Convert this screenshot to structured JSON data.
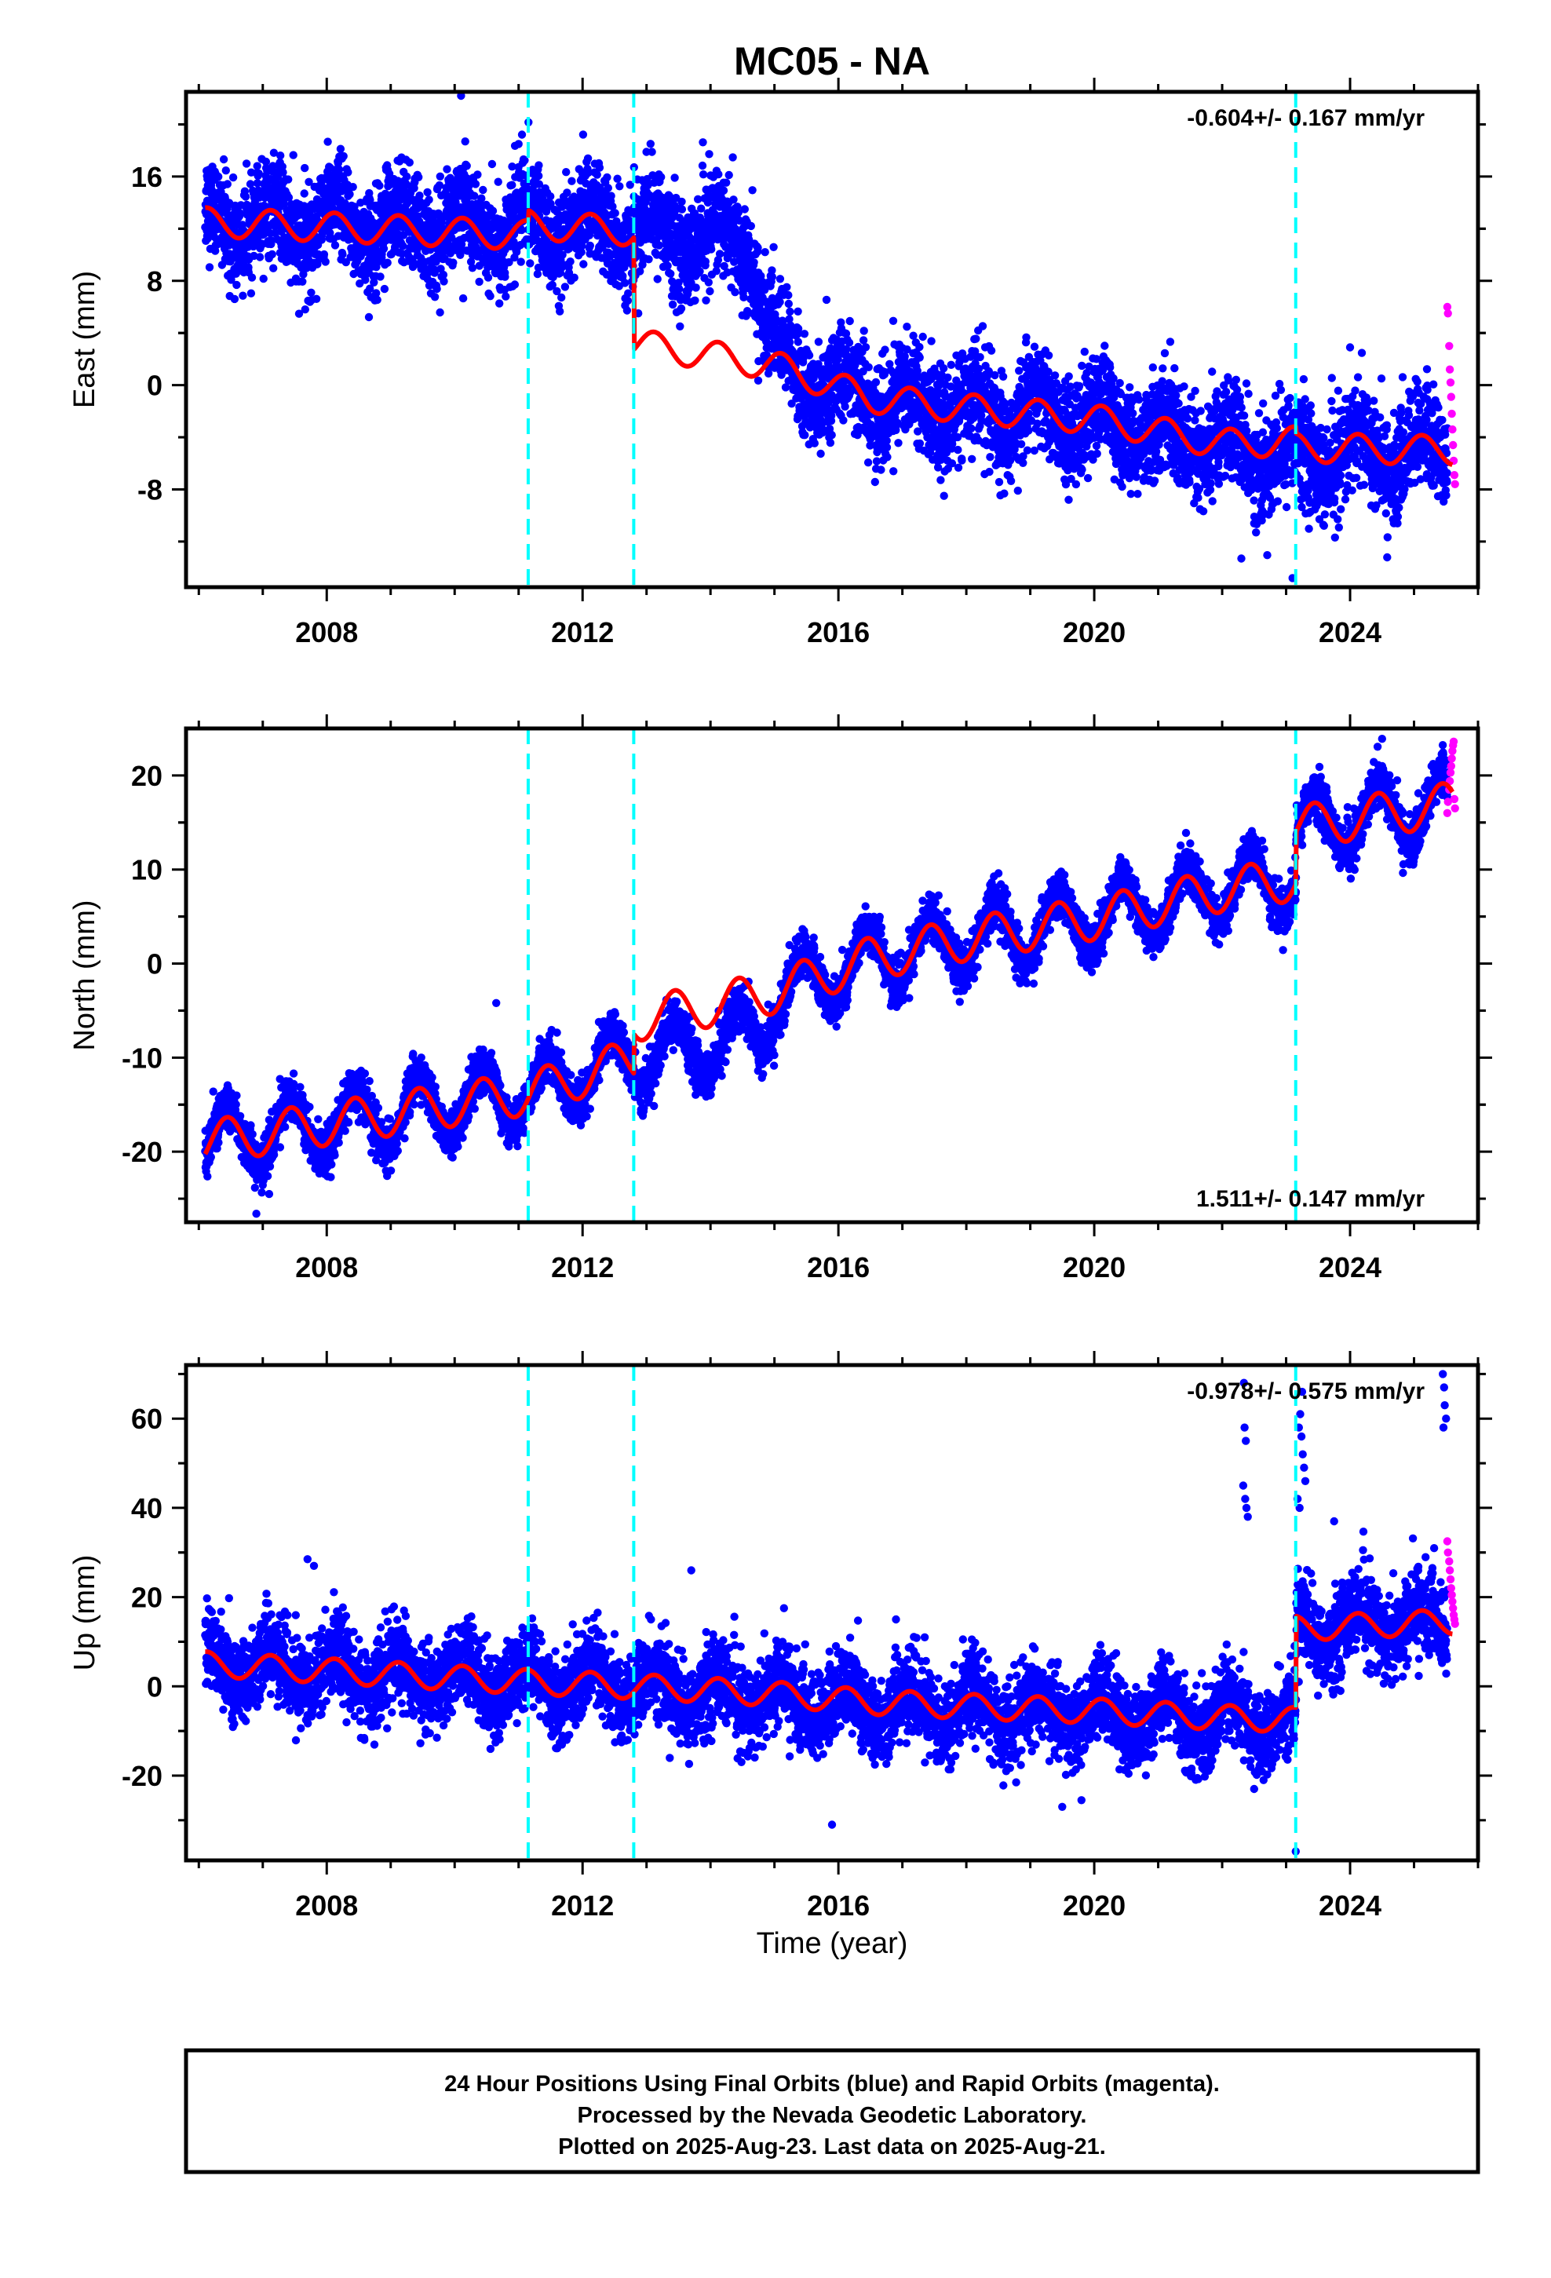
{
  "chart_data": {
    "type": "scatter",
    "title": "MC05 - NA",
    "xlabel": "Time (year)",
    "xlim": [
      2005.8,
      2026.0
    ],
    "x_ticks": [
      2008,
      2012,
      2016,
      2020,
      2024
    ],
    "x_tick_labels": [
      "2008",
      "2012",
      "2016",
      "2020",
      "2024"
    ],
    "offset_lines": [
      2011.15,
      2012.8,
      2023.15
    ],
    "colors": {
      "final": "#0000ff",
      "rapid": "#ff00ff",
      "model": "#ff0000",
      "offsets": "#00ffff"
    },
    "panels": [
      {
        "name": "east",
        "ylabel": "East (mm)",
        "ylim": [
          -15.5,
          22.5
        ],
        "y_ticks": [
          -8,
          0,
          8,
          16
        ],
        "y_tick_labels": [
          "-8",
          "0",
          "8",
          "16"
        ],
        "rate": "-0.604+/- 0.167 mm/yr",
        "rate_pos": "top-right",
        "noise": 1.9,
        "amp": 1.6,
        "spread_factor": 1.0,
        "trend": [
          [
            2006.1,
            12.5
          ],
          [
            2011.15,
            11.5
          ],
          [
            2011.16,
            12.3
          ],
          [
            2012.8,
            11.8
          ],
          [
            2012.81,
            3.2
          ],
          [
            2015.0,
            1.5
          ],
          [
            2016.5,
            -1.0
          ],
          [
            2018.0,
            -1.8
          ],
          [
            2020.0,
            -2.6
          ],
          [
            2022.0,
            -4.5
          ],
          [
            2023.15,
            -4.3
          ],
          [
            2023.16,
            -4.8
          ],
          [
            2025.6,
            -5.0
          ]
        ],
        "data_trend": [
          [
            2006.1,
            12.5
          ],
          [
            2012.8,
            12.0
          ],
          [
            2014.6,
            10.8
          ],
          [
            2015.0,
            3.0
          ],
          [
            2015.4,
            0.5
          ],
          [
            2016.5,
            -1.0
          ],
          [
            2018.0,
            -1.8
          ],
          [
            2020.0,
            -2.6
          ],
          [
            2022.0,
            -4.8
          ],
          [
            2023.15,
            -5.5
          ],
          [
            2025.6,
            -5.0
          ]
        ],
        "outliers": [
          [
            2010.1,
            22.2
          ],
          [
            2011.0,
            18.5
          ],
          [
            2022.3,
            -13.3
          ],
          [
            2023.1,
            -14.8
          ],
          [
            2024.0,
            2.9
          ],
          [
            2019.6,
            -8.8
          ]
        ],
        "rapid": [
          [
            2025.52,
            6.0
          ],
          [
            2025.53,
            5.5
          ],
          [
            2025.55,
            3.0
          ],
          [
            2025.56,
            1.2
          ],
          [
            2025.57,
            0.2
          ],
          [
            2025.58,
            -0.9
          ],
          [
            2025.59,
            -2.2
          ],
          [
            2025.6,
            -3.4
          ],
          [
            2025.61,
            -4.6
          ],
          [
            2025.62,
            -5.8
          ],
          [
            2025.63,
            -6.9
          ],
          [
            2025.64,
            -7.6
          ]
        ]
      },
      {
        "name": "north",
        "ylabel": "North (mm)",
        "ylim": [
          -27.5,
          25.0
        ],
        "y_ticks": [
          -20,
          -10,
          0,
          10,
          20
        ],
        "y_tick_labels": [
          "-20",
          "-10",
          "0",
          "10",
          "20"
        ],
        "rate": "1.511+/- 0.147 mm/yr",
        "rate_pos": "bottom-right",
        "noise": 1.2,
        "amp": 3.3,
        "spread_factor": 1.0,
        "trend": [
          [
            2006.1,
            -19.0
          ],
          [
            2011.15,
            -13.8
          ],
          [
            2012.8,
            -10.2
          ],
          [
            2012.81,
            -6.0
          ],
          [
            2014.7,
            -3.5
          ],
          [
            2015.0,
            -3.0
          ],
          [
            2016.5,
            0.5
          ],
          [
            2018.0,
            2.6
          ],
          [
            2020.0,
            4.8
          ],
          [
            2022.0,
            7.8
          ],
          [
            2023.15,
            9.0
          ],
          [
            2023.16,
            14.5
          ],
          [
            2025.6,
            17.0
          ]
        ],
        "data_trend": [
          [
            2006.1,
            -19.0
          ],
          [
            2011.15,
            -13.8
          ],
          [
            2012.8,
            -10.0
          ],
          [
            2014.8,
            -7.5
          ],
          [
            2015.0,
            -3.5
          ],
          [
            2016.5,
            0.5
          ],
          [
            2018.0,
            2.6
          ],
          [
            2020.0,
            4.8
          ],
          [
            2022.0,
            7.8
          ],
          [
            2023.15,
            9.0
          ],
          [
            2023.16,
            14.5
          ],
          [
            2025.6,
            17.0
          ]
        ],
        "outliers": [
          [
            2006.9,
            -26.6
          ],
          [
            2010.65,
            -4.2
          ],
          [
            2024.5,
            23.9
          ],
          [
            2007.1,
            -24.5
          ]
        ],
        "rapid": [
          [
            2025.52,
            16.0
          ],
          [
            2025.53,
            17.2
          ],
          [
            2025.55,
            18.5
          ],
          [
            2025.56,
            19.4
          ],
          [
            2025.57,
            20.3
          ],
          [
            2025.58,
            21.0
          ],
          [
            2025.59,
            21.8
          ],
          [
            2025.6,
            22.6
          ],
          [
            2025.61,
            23.2
          ],
          [
            2025.62,
            23.6
          ],
          [
            2025.63,
            17.5
          ],
          [
            2025.64,
            16.5
          ]
        ]
      },
      {
        "name": "up",
        "ylabel": "Up (mm)",
        "ylim": [
          -39.0,
          72.0
        ],
        "y_ticks": [
          -20,
          0,
          20,
          40,
          60
        ],
        "y_tick_labels": [
          "-20",
          "0",
          "20",
          "40",
          "60"
        ],
        "rate": "-0.978+/- 0.575 mm/yr",
        "rate_pos": "top-right",
        "noise": 4.6,
        "amp": 4.0,
        "spread_factor": 1.0,
        "trend": [
          [
            2006.1,
            5.0
          ],
          [
            2011.15,
            1.0
          ],
          [
            2012.8,
            0.0
          ],
          [
            2014.8,
            -1.5
          ],
          [
            2016.5,
            -3.5
          ],
          [
            2018.0,
            -4.5
          ],
          [
            2020.0,
            -5.5
          ],
          [
            2022.0,
            -7.0
          ],
          [
            2023.15,
            -7.5
          ],
          [
            2023.16,
            13.0
          ],
          [
            2025.6,
            14.5
          ]
        ],
        "data_trend": [
          [
            2006.1,
            5.0
          ],
          [
            2011.15,
            1.0
          ],
          [
            2012.8,
            0.0
          ],
          [
            2014.8,
            -2.5
          ],
          [
            2016.5,
            -4.5
          ],
          [
            2018.0,
            -5.0
          ],
          [
            2020.0,
            -6.0
          ],
          [
            2022.0,
            -7.5
          ],
          [
            2023.15,
            -8.0
          ],
          [
            2023.16,
            13.0
          ],
          [
            2025.6,
            14.5
          ]
        ],
        "outliers": [
          [
            2022.35,
            58.0
          ],
          [
            2022.37,
            55.0
          ],
          [
            2022.36,
            42.0
          ],
          [
            2022.38,
            40.0
          ],
          [
            2022.4,
            38.0
          ],
          [
            2022.33,
            45.0
          ],
          [
            2022.34,
            68.0
          ],
          [
            2023.2,
            58.0
          ],
          [
            2023.22,
            61.0
          ],
          [
            2023.24,
            56.0
          ],
          [
            2023.26,
            52.0
          ],
          [
            2023.28,
            49.0
          ],
          [
            2023.3,
            46.0
          ],
          [
            2023.18,
            42.0
          ],
          [
            2023.21,
            40.0
          ],
          [
            2023.25,
            66.0
          ],
          [
            2023.15,
            -37.0
          ],
          [
            2015.9,
            -31.0
          ],
          [
            2007.7,
            28.5
          ],
          [
            2007.8,
            27.0
          ],
          [
            2013.7,
            26.0
          ],
          [
            2016.9,
            15.0
          ],
          [
            2023.75,
            37.0
          ],
          [
            2025.45,
            70.0
          ],
          [
            2025.47,
            67.0
          ],
          [
            2025.48,
            63.0
          ],
          [
            2025.5,
            60.0
          ],
          [
            2025.46,
            58.0
          ],
          [
            2019.5,
            -27.0
          ],
          [
            2019.8,
            -25.5
          ],
          [
            2022.5,
            -23.0
          ]
        ],
        "rapid": [
          [
            2025.52,
            32.5
          ],
          [
            2025.53,
            30.0
          ],
          [
            2025.55,
            28.0
          ],
          [
            2025.56,
            26.0
          ],
          [
            2025.57,
            24.0
          ],
          [
            2025.58,
            22.0
          ],
          [
            2025.59,
            20.5
          ],
          [
            2025.6,
            19.0
          ],
          [
            2025.61,
            17.5
          ],
          [
            2025.62,
            16.0
          ],
          [
            2025.63,
            15.0
          ],
          [
            2025.64,
            14.0
          ]
        ]
      }
    ]
  },
  "footer": {
    "line1": "24 Hour Positions Using Final Orbits (blue) and Rapid Orbits (magenta).",
    "line2": "Processed by the Nevada Geodetic Laboratory.",
    "line3": "Plotted on 2025-Aug-23. Last data on 2025-Aug-21."
  }
}
